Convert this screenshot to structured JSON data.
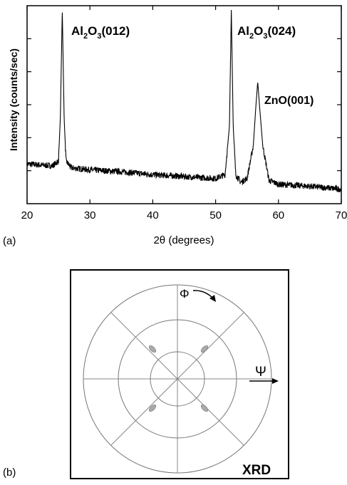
{
  "panel_a": {
    "label": "(a)",
    "peak_labels": [
      {
        "main": "Al",
        "sub": "2",
        "mid": "O",
        "sub2": "3",
        "tail": "(012)"
      },
      {
        "main": "Al",
        "sub": "2",
        "mid": "O",
        "sub2": "3",
        "tail": "(024)"
      },
      {
        "main": "ZnO(001)",
        "sub": "",
        "mid": "",
        "sub2": "",
        "tail": ""
      }
    ]
  },
  "panel_b": {
    "label": "(b)",
    "phi_symbol": "Φ",
    "psi_symbol": "Ψ",
    "corner_label": "XRD",
    "spots": 4
  },
  "chart_data": {
    "type": "line",
    "xlabel": "2θ (degrees)",
    "ylabel": "Intensity (counts/sec)",
    "xlim": [
      20,
      70
    ],
    "xticks": [
      20,
      30,
      40,
      50,
      60,
      70
    ],
    "ylim": [
      0,
      100
    ],
    "yticks_shown_without_labels": true,
    "grid": false,
    "series": [
      {
        "x": [
          20,
          22,
          24,
          25,
          25.3,
          25.6,
          25.9,
          26.2,
          27,
          30,
          35,
          40,
          45,
          50,
          51.5,
          52.2,
          52.5,
          52.8,
          53.2,
          54,
          55,
          56,
          56.4,
          56.7,
          57.0,
          57.5,
          58.5,
          60,
          65,
          70
        ],
        "y": [
          20.5,
          20,
          19.5,
          22,
          45,
          100,
          44,
          22,
          18.5,
          17.5,
          16.5,
          15,
          14,
          13,
          15,
          40,
          100,
          40,
          15,
          11,
          13,
          30,
          50,
          63,
          50,
          30,
          12,
          10,
          9,
          7.5
        ]
      }
    ]
  }
}
